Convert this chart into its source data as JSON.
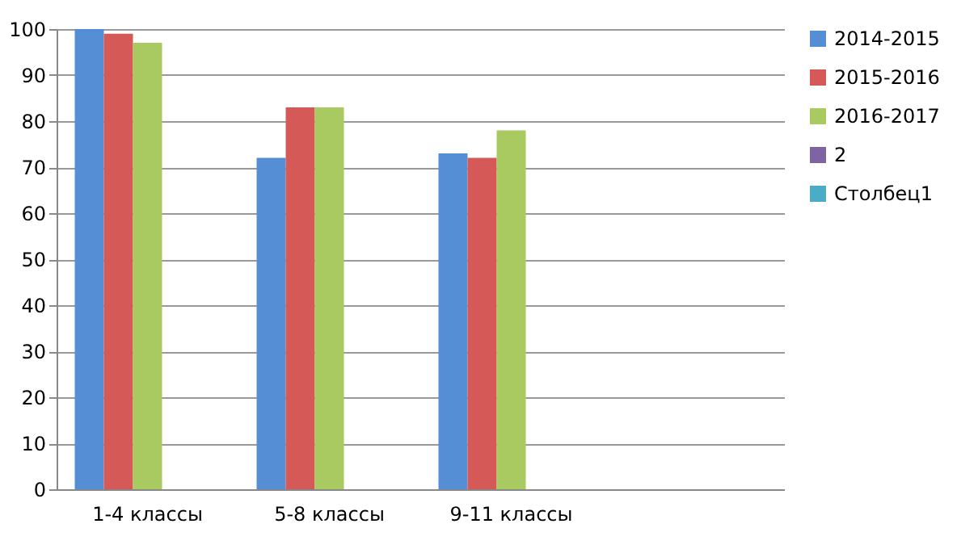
{
  "chart_data": {
    "type": "bar",
    "categories": [
      "1-4 классы",
      "5-8 классы",
      "9-11 классы",
      null
    ],
    "series": [
      {
        "name": "2014-2015",
        "color": "#558ed5",
        "values": [
          100,
          72,
          73,
          null
        ]
      },
      {
        "name": "2015-2016",
        "color": "#d55a57",
        "values": [
          99,
          83,
          72,
          null
        ]
      },
      {
        "name": "2016-2017",
        "color": "#a9ca61",
        "values": [
          97,
          83,
          78,
          null
        ]
      },
      {
        "name": "2",
        "color": "#8064a2",
        "values": [
          null,
          null,
          null,
          null
        ]
      },
      {
        "name": "Столбец1",
        "color": "#4bacc6",
        "values": [
          null,
          null,
          null,
          null
        ]
      }
    ],
    "ylim": [
      0,
      100
    ],
    "yticks": [
      0,
      10,
      20,
      30,
      40,
      50,
      60,
      70,
      80,
      90,
      100
    ],
    "grid": "y",
    "legend": "right"
  }
}
